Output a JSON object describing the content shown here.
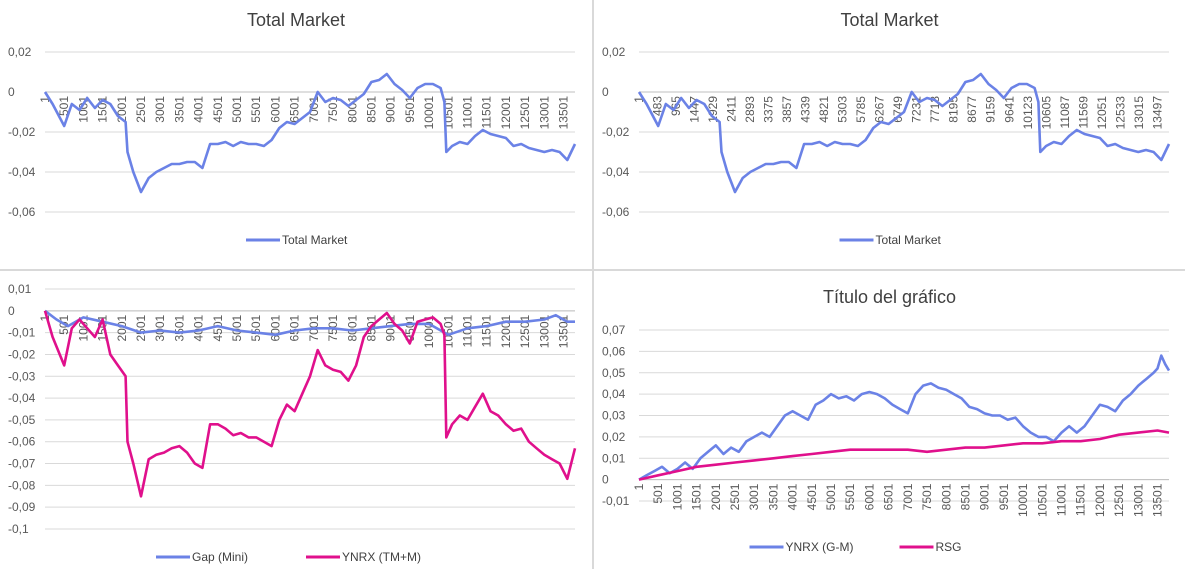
{
  "chart_data": [
    {
      "type": "line",
      "title": "Total Market",
      "ylim": [
        -0.06,
        0.02
      ],
      "yticks": [
        "0,02",
        "0",
        "-0,02",
        "-0,04",
        "-0,06"
      ],
      "ytick_values": [
        0.02,
        0,
        -0.02,
        -0.04,
        -0.06
      ],
      "xticks": [
        "1",
        "501",
        "1001",
        "1501",
        "2001",
        "2501",
        "3001",
        "3501",
        "4001",
        "4501",
        "5001",
        "5501",
        "6001",
        "6501",
        "7001",
        "7501",
        "8001",
        "8501",
        "9001",
        "9501",
        "10001",
        "10501",
        "11001",
        "11501",
        "12001",
        "12501",
        "13001",
        "13501"
      ],
      "xtick_values": [
        1,
        501,
        1001,
        1501,
        2001,
        2501,
        3001,
        3501,
        4001,
        4501,
        5001,
        5501,
        6001,
        6501,
        7001,
        7501,
        8001,
        8501,
        9001,
        9501,
        10001,
        10501,
        11001,
        11501,
        12001,
        12501,
        13001,
        13501
      ],
      "xrange": [
        1,
        13800
      ],
      "legend_position": "bottom",
      "series": [
        {
          "name": "Total Market",
          "color": "#6b82e6",
          "x": [
            1,
            200,
            500,
            700,
            900,
            1100,
            1300,
            1500,
            1700,
            1900,
            2100,
            2150,
            2300,
            2500,
            2700,
            2900,
            3100,
            3300,
            3500,
            3700,
            3900,
            4100,
            4300,
            4500,
            4700,
            4900,
            5100,
            5300,
            5500,
            5700,
            5900,
            6100,
            6300,
            6500,
            6700,
            6900,
            7100,
            7300,
            7500,
            7700,
            7900,
            8100,
            8300,
            8500,
            8700,
            8900,
            9100,
            9300,
            9500,
            9700,
            9900,
            10100,
            10300,
            10400,
            10450,
            10600,
            10800,
            11000,
            11200,
            11400,
            11600,
            11800,
            12000,
            12200,
            12400,
            12600,
            12800,
            13000,
            13200,
            13400,
            13600,
            13800
          ],
          "y": [
            0.0,
            -0.006,
            -0.017,
            -0.006,
            -0.009,
            -0.003,
            -0.008,
            -0.004,
            -0.006,
            -0.012,
            -0.015,
            -0.03,
            -0.04,
            -0.05,
            -0.043,
            -0.04,
            -0.038,
            -0.036,
            -0.036,
            -0.035,
            -0.035,
            -0.038,
            -0.026,
            -0.026,
            -0.025,
            -0.027,
            -0.025,
            -0.026,
            -0.026,
            -0.027,
            -0.024,
            -0.018,
            -0.015,
            -0.016,
            -0.013,
            -0.01,
            0.0,
            -0.005,
            -0.003,
            -0.004,
            -0.007,
            -0.004,
            -0.001,
            0.005,
            0.006,
            0.009,
            0.004,
            0.001,
            -0.003,
            0.002,
            0.004,
            0.004,
            0.002,
            -0.005,
            -0.03,
            -0.027,
            -0.025,
            -0.026,
            -0.022,
            -0.019,
            -0.021,
            -0.022,
            -0.023,
            -0.027,
            -0.026,
            -0.028,
            -0.029,
            -0.03,
            -0.029,
            -0.03,
            -0.034,
            -0.026
          ]
        }
      ]
    },
    {
      "type": "line",
      "title": "Total Market",
      "ylim": [
        -0.06,
        0.02
      ],
      "yticks": [
        "0,02",
        "0",
        "-0,02",
        "-0,04",
        "-0,06"
      ],
      "ytick_values": [
        0.02,
        0,
        -0.02,
        -0.04,
        -0.06
      ],
      "xticks": [
        "1",
        "483",
        "965",
        "1447",
        "1929",
        "2411",
        "2893",
        "3375",
        "3857",
        "4339",
        "4821",
        "5303",
        "5785",
        "6267",
        "6749",
        "7231",
        "7713",
        "8195",
        "8677",
        "9159",
        "9641",
        "10123",
        "10605",
        "11087",
        "11569",
        "12051",
        "12533",
        "13015",
        "13497"
      ],
      "xtick_values": [
        1,
        483,
        965,
        1447,
        1929,
        2411,
        2893,
        3375,
        3857,
        4339,
        4821,
        5303,
        5785,
        6267,
        6749,
        7231,
        7713,
        8195,
        8677,
        9159,
        9641,
        10123,
        10605,
        11087,
        11569,
        12051,
        12533,
        13015,
        13497
      ],
      "xrange": [
        1,
        13800
      ],
      "legend_position": "bottom",
      "series": [
        {
          "name": "Total Market",
          "color": "#6b82e6",
          "x": [
            1,
            200,
            500,
            700,
            900,
            1100,
            1300,
            1500,
            1700,
            1900,
            2100,
            2150,
            2300,
            2500,
            2700,
            2900,
            3100,
            3300,
            3500,
            3700,
            3900,
            4100,
            4300,
            4500,
            4700,
            4900,
            5100,
            5300,
            5500,
            5700,
            5900,
            6100,
            6300,
            6500,
            6700,
            6900,
            7100,
            7300,
            7500,
            7700,
            7900,
            8100,
            8300,
            8500,
            8700,
            8900,
            9100,
            9300,
            9500,
            9700,
            9900,
            10100,
            10300,
            10400,
            10450,
            10600,
            10800,
            11000,
            11200,
            11400,
            11600,
            11800,
            12000,
            12200,
            12400,
            12600,
            12800,
            13000,
            13200,
            13400,
            13600,
            13800
          ],
          "y": [
            0.0,
            -0.006,
            -0.017,
            -0.006,
            -0.009,
            -0.003,
            -0.008,
            -0.004,
            -0.006,
            -0.012,
            -0.015,
            -0.03,
            -0.04,
            -0.05,
            -0.043,
            -0.04,
            -0.038,
            -0.036,
            -0.036,
            -0.035,
            -0.035,
            -0.038,
            -0.026,
            -0.026,
            -0.025,
            -0.027,
            -0.025,
            -0.026,
            -0.026,
            -0.027,
            -0.024,
            -0.018,
            -0.015,
            -0.016,
            -0.013,
            -0.01,
            0.0,
            -0.005,
            -0.003,
            -0.004,
            -0.007,
            -0.004,
            -0.001,
            0.005,
            0.006,
            0.009,
            0.004,
            0.001,
            -0.003,
            0.002,
            0.004,
            0.004,
            0.002,
            -0.005,
            -0.03,
            -0.027,
            -0.025,
            -0.026,
            -0.022,
            -0.019,
            -0.021,
            -0.022,
            -0.023,
            -0.027,
            -0.026,
            -0.028,
            -0.029,
            -0.03,
            -0.029,
            -0.03,
            -0.034,
            -0.026
          ]
        }
      ]
    },
    {
      "type": "line",
      "title": "",
      "ylim": [
        -0.1,
        0.01
      ],
      "yticks": [
        "0,01",
        "0",
        "-0,01",
        "-0,02",
        "-0,03",
        "-0,04",
        "-0,05",
        "-0,06",
        "-0,07",
        "-0,08",
        "-0,09",
        "-0,1"
      ],
      "ytick_values": [
        0.01,
        0,
        -0.01,
        -0.02,
        -0.03,
        -0.04,
        -0.05,
        -0.06,
        -0.07,
        -0.08,
        -0.09,
        -0.1
      ],
      "xticks": [
        "1",
        "501",
        "1001",
        "1501",
        "2001",
        "2501",
        "3001",
        "3501",
        "4001",
        "4501",
        "5001",
        "5501",
        "6001",
        "6501",
        "7001",
        "7501",
        "8001",
        "8501",
        "9001",
        "9501",
        "10001",
        "10501",
        "11001",
        "11501",
        "12001",
        "12501",
        "13001",
        "13501"
      ],
      "xtick_values": [
        1,
        501,
        1001,
        1501,
        2001,
        2501,
        3001,
        3501,
        4001,
        4501,
        5001,
        5501,
        6001,
        6501,
        7001,
        7501,
        8001,
        8501,
        9001,
        9501,
        10001,
        10501,
        11001,
        11501,
        12001,
        12501,
        13001,
        13501
      ],
      "xrange": [
        1,
        13800
      ],
      "legend_position": "bottom",
      "series": [
        {
          "name": "Gap (Mini)",
          "color": "#6b82e6",
          "x": [
            1,
            300,
            600,
            1000,
            1500,
            2000,
            2500,
            3000,
            3500,
            4000,
            4500,
            5000,
            5500,
            6000,
            6500,
            7000,
            7500,
            8000,
            8500,
            9000,
            9500,
            10000,
            10500,
            11000,
            11500,
            12000,
            12500,
            13000,
            13300,
            13600,
            13800
          ],
          "y": [
            0.0,
            -0.004,
            -0.007,
            -0.003,
            -0.005,
            -0.007,
            -0.01,
            -0.009,
            -0.01,
            -0.009,
            -0.007,
            -0.009,
            -0.01,
            -0.011,
            -0.009,
            -0.008,
            -0.008,
            -0.009,
            -0.008,
            -0.007,
            -0.006,
            -0.006,
            -0.011,
            -0.008,
            -0.007,
            -0.005,
            -0.005,
            -0.004,
            -0.002,
            -0.005,
            -0.005
          ]
        },
        {
          "name": "YNRX (TM+M)",
          "color": "#e0108c",
          "x": [
            1,
            200,
            500,
            700,
            900,
            1100,
            1300,
            1500,
            1700,
            1900,
            2100,
            2150,
            2300,
            2500,
            2700,
            2900,
            3100,
            3300,
            3500,
            3700,
            3900,
            4100,
            4300,
            4500,
            4700,
            4900,
            5100,
            5300,
            5500,
            5700,
            5900,
            6100,
            6300,
            6500,
            6700,
            6900,
            7100,
            7300,
            7500,
            7700,
            7900,
            8100,
            8300,
            8500,
            8700,
            8900,
            9100,
            9300,
            9500,
            9700,
            9900,
            10100,
            10300,
            10400,
            10450,
            10600,
            10800,
            11000,
            11200,
            11400,
            11600,
            11800,
            12000,
            12200,
            12400,
            12600,
            12800,
            13000,
            13200,
            13400,
            13600,
            13800
          ],
          "y": [
            0.0,
            -0.012,
            -0.025,
            -0.008,
            -0.004,
            -0.008,
            -0.012,
            -0.004,
            -0.02,
            -0.025,
            -0.03,
            -0.06,
            -0.07,
            -0.085,
            -0.068,
            -0.066,
            -0.065,
            -0.063,
            -0.062,
            -0.065,
            -0.07,
            -0.072,
            -0.052,
            -0.052,
            -0.054,
            -0.057,
            -0.056,
            -0.058,
            -0.058,
            -0.06,
            -0.062,
            -0.05,
            -0.043,
            -0.046,
            -0.038,
            -0.03,
            -0.018,
            -0.025,
            -0.027,
            -0.028,
            -0.032,
            -0.025,
            -0.012,
            -0.007,
            -0.004,
            -0.001,
            -0.006,
            -0.009,
            -0.015,
            -0.005,
            -0.004,
            -0.003,
            -0.006,
            -0.011,
            -0.058,
            -0.052,
            -0.048,
            -0.05,
            -0.044,
            -0.038,
            -0.046,
            -0.048,
            -0.052,
            -0.055,
            -0.054,
            -0.06,
            -0.063,
            -0.066,
            -0.068,
            -0.07,
            -0.077,
            -0.063
          ]
        }
      ]
    },
    {
      "type": "line",
      "title": "Título del gráfico",
      "ylim": [
        -0.01,
        0.07
      ],
      "yticks": [
        "0,07",
        "0,06",
        "0,05",
        "0,04",
        "0,03",
        "0,02",
        "0,01",
        "0",
        "-0,01"
      ],
      "ytick_values": [
        0.07,
        0.06,
        0.05,
        0.04,
        0.03,
        0.02,
        0.01,
        0,
        -0.01
      ],
      "xticks": [
        "1",
        "501",
        "1001",
        "1501",
        "2001",
        "2501",
        "3001",
        "3501",
        "4001",
        "4501",
        "5001",
        "5501",
        "6001",
        "6501",
        "7001",
        "7501",
        "8001",
        "8501",
        "9001",
        "9501",
        "10001",
        "10501",
        "11001",
        "11501",
        "12001",
        "12501",
        "13001",
        "13501"
      ],
      "xtick_values": [
        1,
        501,
        1001,
        1501,
        2001,
        2501,
        3001,
        3501,
        4001,
        4501,
        5001,
        5501,
        6001,
        6501,
        7001,
        7501,
        8001,
        8501,
        9001,
        9501,
        10001,
        10501,
        11001,
        11501,
        12001,
        12501,
        13001,
        13501
      ],
      "xrange": [
        1,
        13800
      ],
      "legend_position": "bottom",
      "series": [
        {
          "name": "YNRX (G-M)",
          "color": "#6b82e6",
          "x": [
            1,
            200,
            400,
            600,
            800,
            1000,
            1200,
            1400,
            1600,
            1800,
            2000,
            2200,
            2400,
            2600,
            2800,
            3000,
            3200,
            3400,
            3600,
            3800,
            4000,
            4200,
            4400,
            4600,
            4800,
            5000,
            5200,
            5400,
            5600,
            5800,
            6000,
            6200,
            6400,
            6600,
            6800,
            7000,
            7200,
            7400,
            7600,
            7800,
            8000,
            8200,
            8400,
            8600,
            8800,
            9000,
            9200,
            9400,
            9600,
            9800,
            10000,
            10200,
            10400,
            10600,
            10800,
            11000,
            11200,
            11400,
            11600,
            11800,
            12000,
            12200,
            12400,
            12600,
            12800,
            13000,
            13200,
            13400,
            13500,
            13600,
            13700,
            13800
          ],
          "y": [
            0.0,
            0.002,
            0.004,
            0.006,
            0.003,
            0.005,
            0.008,
            0.005,
            0.01,
            0.013,
            0.016,
            0.012,
            0.015,
            0.013,
            0.018,
            0.02,
            0.022,
            0.02,
            0.025,
            0.03,
            0.032,
            0.03,
            0.028,
            0.035,
            0.037,
            0.04,
            0.038,
            0.039,
            0.037,
            0.04,
            0.041,
            0.04,
            0.038,
            0.035,
            0.033,
            0.031,
            0.04,
            0.044,
            0.045,
            0.043,
            0.042,
            0.04,
            0.038,
            0.034,
            0.033,
            0.031,
            0.03,
            0.03,
            0.028,
            0.029,
            0.025,
            0.022,
            0.02,
            0.02,
            0.018,
            0.022,
            0.025,
            0.022,
            0.025,
            0.03,
            0.035,
            0.034,
            0.032,
            0.037,
            0.04,
            0.044,
            0.047,
            0.05,
            0.052,
            0.058,
            0.054,
            0.051
          ]
        },
        {
          "name": "RSG",
          "color": "#e0108c",
          "x": [
            1,
            500,
            1000,
            1500,
            2000,
            2500,
            3000,
            3500,
            4000,
            4500,
            5000,
            5500,
            6000,
            6500,
            7000,
            7500,
            8000,
            8500,
            9000,
            9500,
            10000,
            10500,
            11000,
            11500,
            12000,
            12500,
            13000,
            13500,
            13800
          ],
          "y": [
            0.0,
            0.002,
            0.004,
            0.006,
            0.007,
            0.008,
            0.009,
            0.01,
            0.011,
            0.012,
            0.013,
            0.014,
            0.014,
            0.014,
            0.014,
            0.013,
            0.014,
            0.015,
            0.015,
            0.016,
            0.017,
            0.017,
            0.018,
            0.018,
            0.019,
            0.021,
            0.022,
            0.023,
            0.022
          ]
        }
      ]
    }
  ]
}
